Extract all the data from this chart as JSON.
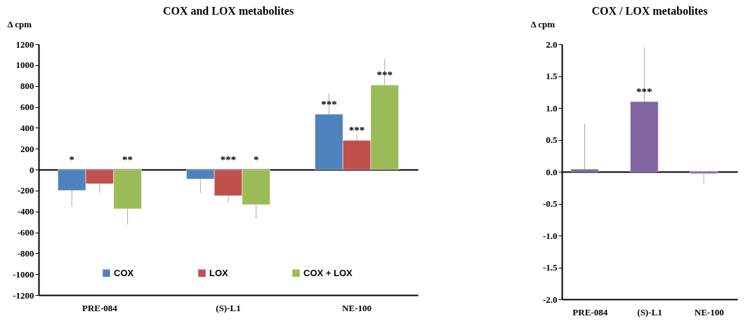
{
  "chart_data": [
    {
      "type": "bar",
      "title": "COX and LOX metabolites",
      "ylabel": "Δ cpm",
      "categories": [
        "PRE-084",
        "(S)-L1",
        "NE-100"
      ],
      "ylim": [
        -1200,
        1200
      ],
      "yticks": [
        -1200,
        -1000,
        -800,
        -600,
        -400,
        -200,
        0,
        200,
        400,
        600,
        800,
        1000,
        1200
      ],
      "legend": "bottom",
      "series": [
        {
          "name": "COX",
          "color": "#4f81bd",
          "values": [
            -200,
            -90,
            530
          ],
          "errors": [
            [
              -355,
              -200
            ],
            [
              -225,
              -90
            ],
            [
              530,
              730
            ]
          ],
          "value_labels": [
            "*",
            null,
            "***"
          ]
        },
        {
          "name": "LOX",
          "color": "#c0504d",
          "values": [
            -135,
            -250,
            280
          ],
          "errors": [
            [
              -220,
              -135
            ],
            [
              -315,
              -250
            ],
            [
              280,
              335
            ]
          ],
          "value_labels": [
            null,
            "***",
            "***"
          ]
        },
        {
          "name": "COX + LOX",
          "color": "#9bbb59",
          "values": [
            -375,
            -335,
            810
          ],
          "errors": [
            [
              -525,
              -375
            ],
            [
              -470,
              -335
            ],
            [
              810,
              1060
            ]
          ],
          "value_labels": [
            "**",
            "*",
            "***"
          ]
        }
      ]
    },
    {
      "type": "bar",
      "title": "COX / LOX metabolites",
      "ylabel": "Δ cpm",
      "categories": [
        "PRE-084",
        "(S)-L1",
        "NE-100"
      ],
      "ylim": [
        -2,
        2
      ],
      "yticks": [
        {
          "value": -2,
          "label": "-2.0"
        },
        {
          "value": -1.5,
          "label": "-1.5"
        },
        {
          "value": -1,
          "label": "-1.0"
        },
        {
          "value": -0.5,
          "label": "-0.5"
        },
        {
          "value": 0,
          "label": "0.0"
        },
        {
          "value": 0.5,
          "label": "0.5"
        },
        {
          "value": 1,
          "label": "1.0"
        },
        {
          "value": 1.5,
          "label": "1.5"
        },
        {
          "value": 2,
          "label": "2.0"
        }
      ],
      "series": [
        {
          "color": "#8064a2",
          "values": [
            0.04,
            1.1,
            -0.03
          ],
          "errors": [
            [
              0.04,
              0.75
            ],
            [
              1.1,
              1.95
            ],
            [
              -0.19,
              -0.03
            ]
          ],
          "value_labels": [
            null,
            "***",
            null
          ]
        }
      ]
    }
  ]
}
